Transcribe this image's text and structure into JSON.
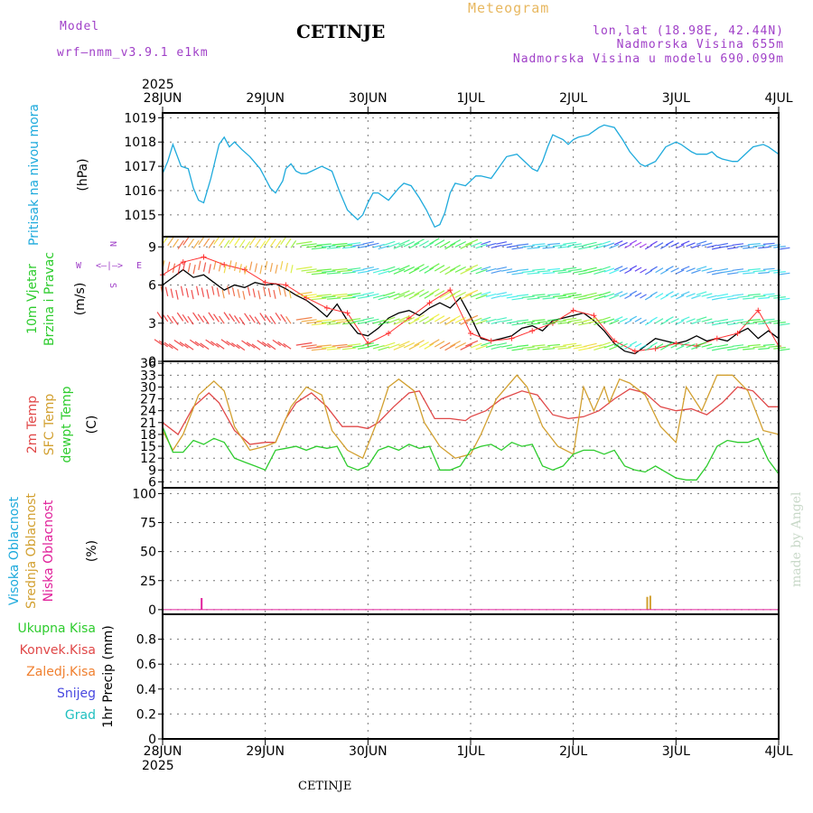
{
  "header": {
    "model_label": "Model",
    "model_name": "wrf—nmm_v3.9.1 e1km",
    "station": "CETINJE",
    "meteogram": "Meteogram",
    "coords": "lon,lat (18.98E, 42.44N)",
    "altitude": "Nadmorska Visina 655m",
    "model_altitude": "Nadmorska Visina u modelu 690.099m",
    "year_top": "2025",
    "year_bottom": "2025",
    "footer_station": "CETINJE",
    "credit": "made by Angel"
  },
  "colors": {
    "pressure": "#1eaadc",
    "temp2m": "#e04848",
    "sfc": "#d2a030",
    "dew": "#2ecc2e",
    "wind_speed": "#000000",
    "gust": "#ff3030",
    "high_cloud": "#1eaadc",
    "mid_cloud": "#d2a030",
    "low_cloud": "#e0209a",
    "header_purple": "#a040c8",
    "meteogram_orange": "#e8b860"
  },
  "chart_data": [
    {
      "type": "line",
      "panel": "pressure",
      "ylabel_lines": [
        "Pritisak na nivou mora"
      ],
      "unit": "(hPa)",
      "x_ticks": [
        "28JUN",
        "29JUN",
        "30JUN",
        "1JUL",
        "2JUL",
        "3JUL",
        "4JUL"
      ],
      "ylim": [
        1014.1,
        1019.2
      ],
      "yticks": [
        1015,
        1016,
        1017,
        1018,
        1019
      ],
      "grid": true,
      "series": [
        {
          "color_key": "pressure",
          "x": [
            0,
            0.05,
            0.1,
            0.18,
            0.25,
            0.3,
            0.35,
            0.4,
            0.47,
            0.55,
            0.6,
            0.65,
            0.7,
            0.77,
            0.85,
            0.95,
            1.0,
            1.05,
            1.1,
            1.17,
            1.2,
            1.25,
            1.3,
            1.35,
            1.4,
            1.45,
            1.55,
            1.65,
            1.72,
            1.8,
            1.9,
            1.95,
            2.0,
            2.05,
            2.1,
            2.2,
            2.3,
            2.35,
            2.42,
            2.5,
            2.57,
            2.65,
            2.7,
            2.75,
            2.8,
            2.85,
            2.95,
            3.0,
            3.05,
            3.1,
            3.2,
            3.25,
            3.35,
            3.45,
            3.55,
            3.6,
            3.65,
            3.7,
            3.75,
            3.8,
            3.85,
            3.9,
            3.95,
            4.0,
            4.05,
            4.15,
            4.25,
            4.3,
            4.4,
            4.48,
            4.55,
            4.65,
            4.7,
            4.8,
            4.85,
            4.9,
            5.0,
            5.05,
            5.15,
            5.2,
            5.3,
            5.35,
            5.4,
            5.45,
            5.55,
            5.6,
            5.65,
            5.7,
            5.75,
            5.85,
            5.9,
            6.0
          ],
          "y": [
            1016.7,
            1017.2,
            1017.9,
            1017.0,
            1016.9,
            1016.1,
            1015.6,
            1015.5,
            1016.5,
            1017.9,
            1018.2,
            1017.8,
            1018.0,
            1017.7,
            1017.4,
            1016.9,
            1016.5,
            1016.1,
            1015.9,
            1016.4,
            1016.9,
            1017.1,
            1016.8,
            1016.7,
            1016.7,
            1016.8,
            1017.0,
            1016.8,
            1016.0,
            1015.2,
            1014.8,
            1015.0,
            1015.5,
            1015.9,
            1015.9,
            1015.6,
            1016.1,
            1016.3,
            1016.2,
            1015.7,
            1015.2,
            1014.5,
            1014.6,
            1015.1,
            1015.9,
            1016.3,
            1016.2,
            1016.4,
            1016.6,
            1016.6,
            1016.5,
            1016.8,
            1017.4,
            1017.5,
            1017.1,
            1016.9,
            1016.8,
            1017.2,
            1017.8,
            1018.3,
            1018.2,
            1018.1,
            1017.9,
            1018.1,
            1018.2,
            1018.3,
            1018.6,
            1018.7,
            1018.6,
            1018.1,
            1017.6,
            1017.1,
            1017.0,
            1017.2,
            1017.5,
            1017.8,
            1018.0,
            1017.9,
            1017.6,
            1017.5,
            1017.5,
            1017.6,
            1017.4,
            1017.3,
            1017.2,
            1017.2,
            1017.4,
            1017.6,
            1017.8,
            1017.9,
            1017.8,
            1017.5
          ]
        }
      ]
    },
    {
      "type": "line",
      "panel": "wind",
      "ylabel_lines": [
        "10m Vjetar",
        "Brzina i Pravac"
      ],
      "unit": "(m/s)",
      "compass": {
        "n": "N",
        "s": "S",
        "e": "E",
        "w": "W"
      },
      "ylim": [
        0,
        9.8
      ],
      "yticks": [
        0,
        3,
        6,
        9
      ],
      "grid": true,
      "series": [
        {
          "name": "speed",
          "color_key": "wind_speed",
          "x": [
            0,
            0.1,
            0.2,
            0.3,
            0.4,
            0.5,
            0.6,
            0.7,
            0.8,
            0.9,
            1.0,
            1.1,
            1.2,
            1.3,
            1.4,
            1.5,
            1.6,
            1.7,
            1.8,
            1.9,
            2.0,
            2.1,
            2.2,
            2.3,
            2.4,
            2.5,
            2.6,
            2.7,
            2.8,
            2.9,
            3.0,
            3.1,
            3.2,
            3.3,
            3.4,
            3.5,
            3.6,
            3.7,
            3.8,
            3.9,
            4.0,
            4.1,
            4.2,
            4.3,
            4.4,
            4.5,
            4.6,
            4.7,
            4.8,
            4.9,
            5.0,
            5.1,
            5.2,
            5.3,
            5.4,
            5.5,
            5.6,
            5.7,
            5.8,
            5.9,
            6.0
          ],
          "y": [
            6.0,
            6.6,
            7.2,
            6.6,
            6.8,
            6.2,
            5.6,
            6.0,
            5.8,
            6.2,
            6.0,
            6.1,
            5.7,
            5.2,
            4.8,
            4.2,
            3.5,
            4.5,
            3.2,
            2.2,
            2.0,
            2.6,
            3.4,
            3.8,
            4.0,
            3.6,
            4.2,
            4.6,
            4.2,
            5.0,
            3.5,
            1.8,
            1.6,
            1.8,
            2.0,
            2.6,
            2.8,
            2.4,
            3.2,
            3.4,
            3.6,
            3.8,
            3.2,
            2.4,
            1.4,
            0.8,
            0.6,
            1.2,
            1.8,
            1.6,
            1.4,
            1.6,
            2.0,
            1.6,
            1.8,
            1.6,
            2.2,
            2.6,
            1.8,
            2.4,
            1.8
          ]
        },
        {
          "name": "gust",
          "color_key": "gust",
          "x": [
            0,
            0.2,
            0.4,
            0.6,
            0.8,
            1.0,
            1.2,
            1.4,
            1.6,
            1.8,
            2.0,
            2.2,
            2.4,
            2.6,
            2.8,
            3.0,
            3.2,
            3.4,
            3.6,
            3.8,
            4.0,
            4.2,
            4.4,
            4.6,
            4.8,
            5.0,
            5.2,
            5.4,
            5.6,
            5.8,
            6.0
          ],
          "y": [
            6.8,
            7.8,
            8.2,
            7.6,
            7.2,
            6.2,
            6.0,
            5.0,
            4.2,
            3.8,
            1.4,
            2.2,
            3.4,
            4.6,
            5.6,
            2.2,
            1.6,
            1.8,
            2.4,
            3.0,
            4.0,
            3.6,
            1.6,
            0.8,
            1.0,
            1.4,
            1.2,
            1.8,
            2.2,
            4.0,
            1.2
          ]
        }
      ]
    },
    {
      "type": "line",
      "panel": "temperature",
      "ylabel_lines": [
        "2m Temp",
        "SFC Temp",
        "dewpt Temp"
      ],
      "unit": "(C)",
      "ylim": [
        4.5,
        36.5
      ],
      "yticks": [
        6,
        9,
        12,
        15,
        18,
        21,
        24,
        27,
        30,
        33,
        36
      ],
      "grid": true,
      "series": [
        {
          "name": "2m",
          "color_key": "temp2m",
          "x": [
            0,
            0.15,
            0.3,
            0.45,
            0.55,
            0.7,
            0.85,
            1.0,
            1.1,
            1.2,
            1.3,
            1.45,
            1.6,
            1.75,
            1.9,
            2.0,
            2.1,
            2.25,
            2.4,
            2.5,
            2.65,
            2.8,
            2.95,
            3.0,
            3.15,
            3.3,
            3.5,
            3.65,
            3.8,
            3.95,
            4.1,
            4.25,
            4.4,
            4.55,
            4.7,
            4.85,
            5.0,
            5.15,
            5.3,
            5.45,
            5.6,
            5.75,
            5.9,
            6.0
          ],
          "y": [
            21,
            18,
            25,
            28.5,
            26,
            19,
            15.5,
            16,
            16,
            22,
            26,
            28.5,
            25,
            20,
            20,
            19.5,
            21,
            25,
            28.5,
            29,
            22,
            22,
            21.5,
            22.5,
            24,
            27,
            29,
            28,
            23,
            22,
            22.5,
            24,
            27,
            29.5,
            28.5,
            25,
            24,
            24.5,
            23,
            26,
            30,
            29,
            25,
            25
          ]
        },
        {
          "name": "sfc",
          "color_key": "sfc",
          "x": [
            0,
            0.1,
            0.2,
            0.35,
            0.5,
            0.6,
            0.7,
            0.85,
            1.0,
            1.1,
            1.25,
            1.4,
            1.55,
            1.65,
            1.8,
            1.95,
            2.1,
            2.2,
            2.3,
            2.45,
            2.55,
            2.7,
            2.85,
            3.0,
            3.1,
            3.25,
            3.45,
            3.55,
            3.7,
            3.85,
            4.0,
            4.1,
            4.2,
            4.3,
            4.35,
            4.45,
            4.55,
            4.7,
            4.85,
            5.0,
            5.1,
            5.25,
            5.4,
            5.55,
            5.7,
            5.85,
            6.0
          ],
          "y": [
            19,
            14,
            18,
            28,
            31.5,
            29,
            20,
            14,
            15,
            16,
            25,
            30,
            28,
            19,
            14,
            12,
            22,
            30,
            32,
            29,
            21,
            15,
            12,
            13,
            18,
            27,
            33,
            30,
            20,
            15,
            13,
            30,
            24,
            30,
            26,
            32,
            31,
            28,
            20,
            16,
            30,
            24,
            33,
            33,
            29,
            19,
            18
          ]
        },
        {
          "name": "dew",
          "color_key": "dew",
          "x": [
            0,
            0.1,
            0.2,
            0.3,
            0.4,
            0.5,
            0.6,
            0.7,
            0.8,
            0.9,
            1.0,
            1.1,
            1.2,
            1.3,
            1.4,
            1.5,
            1.6,
            1.7,
            1.8,
            1.9,
            2.0,
            2.1,
            2.2,
            2.3,
            2.4,
            2.5,
            2.6,
            2.7,
            2.8,
            2.9,
            3.0,
            3.1,
            3.2,
            3.3,
            3.4,
            3.5,
            3.6,
            3.7,
            3.8,
            3.9,
            4.0,
            4.1,
            4.2,
            4.3,
            4.4,
            4.5,
            4.6,
            4.7,
            4.8,
            4.9,
            5.0,
            5.1,
            5.2,
            5.3,
            5.4,
            5.5,
            5.6,
            5.7,
            5.8,
            5.9,
            6.0
          ],
          "y": [
            20,
            13.5,
            13.5,
            16.5,
            15.5,
            17,
            16,
            12,
            11,
            10,
            9,
            14,
            14.5,
            15,
            14,
            15,
            14.5,
            15,
            10,
            9,
            10,
            14,
            15,
            14,
            15.5,
            14.5,
            15,
            9,
            9,
            10,
            14,
            15,
            15.5,
            14,
            16,
            15,
            15.5,
            10,
            9,
            10,
            13,
            14,
            14,
            13,
            14,
            10,
            9,
            8.5,
            10,
            8.5,
            7,
            6.5,
            6.5,
            10,
            15,
            16.5,
            16,
            16,
            17,
            11.5,
            8
          ]
        }
      ]
    },
    {
      "type": "bar",
      "panel": "cloud",
      "ylabel_lines": [
        "Visoka Oblacnost",
        "Srednja Oblacnost",
        "Niska Oblacnost"
      ],
      "unit": "(%)",
      "ylim": [
        -4,
        105
      ],
      "yticks": [
        0,
        25,
        50,
        75,
        100
      ],
      "grid": true,
      "series": [
        {
          "name": "low",
          "color_key": "low_cloud",
          "x": [
            0.38
          ],
          "y": [
            10
          ]
        },
        {
          "name": "mid",
          "color_key": "mid_cloud",
          "x": [
            4.72,
            4.75
          ],
          "y": [
            11,
            12
          ]
        },
        {
          "name": "high",
          "color_key": "high_cloud",
          "x": [],
          "y": []
        }
      ]
    },
    {
      "type": "bar",
      "panel": "precip",
      "ylabel_lines": [
        "1hr Precip (mm)"
      ],
      "legend": [
        {
          "label": "Ukupna  Kisa",
          "color": "#2ecc2e"
        },
        {
          "label": "Konvek.Kisa",
          "color": "#e04848"
        },
        {
          "label": "Zaledj.Kisa",
          "color": "#f08030"
        },
        {
          "label": "Snijeg",
          "color": "#4848e0"
        },
        {
          "label": "Grad",
          "color": "#20c0c0"
        }
      ],
      "ylim": [
        0,
        1.0
      ],
      "yticks": [
        "0",
        "0.2",
        "0.4",
        "0.6",
        "0.8"
      ],
      "grid": true,
      "series": []
    }
  ]
}
